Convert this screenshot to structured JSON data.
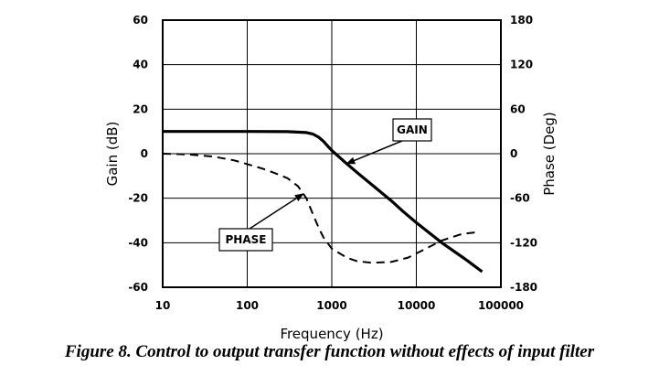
{
  "caption": "Figure 8. Control to output transfer function without effects of input filter",
  "chart_data": {
    "type": "line",
    "xlabel": "Frequency (Hz)",
    "ylabel": "Gain (dB)",
    "y2label": "Phase (Deg)",
    "xscale": "log",
    "xlim": [
      10,
      100000
    ],
    "ylim": [
      -60,
      60
    ],
    "y2lim": [
      -180,
      180
    ],
    "grid": true,
    "x_ticks": [
      "10",
      "100",
      "1000",
      "10000",
      "100000"
    ],
    "y_ticks": [
      "60",
      "40",
      "20",
      "0",
      "-20",
      "-40",
      "-60"
    ],
    "y2_ticks": [
      "180",
      "120",
      "60",
      "0",
      "-60",
      "-120",
      "-180"
    ],
    "series": [
      {
        "name": "GAIN",
        "axis": "left",
        "style": "solid",
        "color": "#000000",
        "x": [
          10,
          100,
          300,
          500,
          600,
          700,
          800,
          900,
          1000,
          1200,
          1500,
          2000,
          3000,
          5000,
          7000,
          10000,
          20000,
          40000,
          60000
        ],
        "y": [
          10,
          10,
          9.9,
          9.5,
          8.8,
          7.4,
          5.5,
          3.3,
          1.5,
          -1.2,
          -4.5,
          -8.5,
          -14,
          -21,
          -26,
          -31,
          -40,
          -48,
          -53
        ]
      },
      {
        "name": "PHASE",
        "axis": "right",
        "style": "dashed",
        "color": "#000000",
        "x": [
          10,
          20,
          40,
          70,
          100,
          150,
          200,
          300,
          400,
          500,
          600,
          700,
          800,
          1000,
          1500,
          2000,
          3000,
          5000,
          8000,
          12000,
          20000,
          35000,
          50000
        ],
        "y": [
          0,
          -1,
          -4,
          -9,
          -14,
          -20,
          -25,
          -33,
          -44,
          -60,
          -82,
          -100,
          -113,
          -128,
          -140,
          -145,
          -147,
          -146,
          -140,
          -130,
          -117,
          -108,
          -106
        ]
      }
    ],
    "annotations": [
      {
        "label": "GAIN",
        "target_series": "GAIN",
        "target_x": 1500
      },
      {
        "label": "PHASE",
        "target_series": "PHASE",
        "target_x": 460
      }
    ]
  }
}
